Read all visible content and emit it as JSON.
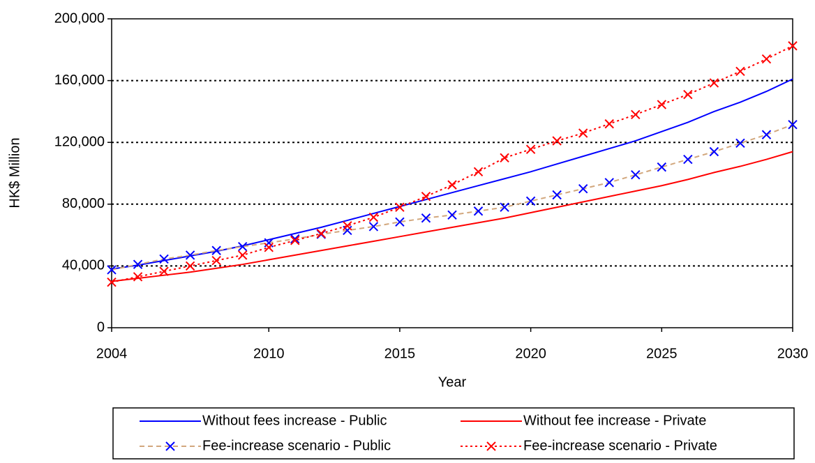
{
  "chart_data": {
    "type": "line",
    "xlabel": "Year",
    "ylabel": "HK$ Million",
    "x": [
      2004,
      2005,
      2006,
      2007,
      2008,
      2009,
      2010,
      2011,
      2012,
      2013,
      2014,
      2015,
      2016,
      2017,
      2018,
      2019,
      2020,
      2021,
      2022,
      2023,
      2024,
      2025,
      2026,
      2027,
      2028,
      2029,
      2030
    ],
    "xlim": [
      2004,
      2030
    ],
    "xticks": [
      2004,
      2010,
      2015,
      2020,
      2025,
      2030
    ],
    "ylim": [
      0,
      200000
    ],
    "yticks": [
      0,
      {
        "value": 40000,
        "label": "40,000"
      },
      {
        "value": 80000,
        "label": "80,000"
      },
      {
        "value": 120000,
        "label": "120,000"
      },
      {
        "value": 160000,
        "label": "160,000"
      },
      {
        "value": 200000,
        "label": "200,000"
      }
    ],
    "grid": true,
    "legend": "bottom",
    "series": [
      {
        "name": "Without fees increase - Public",
        "color": "#0000ff",
        "line_style": "solid",
        "values": [
          38000,
          40500,
          43500,
          46500,
          49500,
          53000,
          57000,
          61000,
          65000,
          69500,
          74000,
          78500,
          83000,
          87500,
          92000,
          96500,
          101000,
          106000,
          111000,
          116000,
          121000,
          127000,
          133000,
          140000,
          146000,
          153000,
          161000
        ]
      },
      {
        "name": "Without fee increase - Private",
        "color": "#ff0000",
        "line_style": "solid",
        "values": [
          30000,
          32000,
          34000,
          36000,
          38500,
          41000,
          44000,
          47000,
          50000,
          53000,
          56000,
          59000,
          62000,
          65000,
          68000,
          71000,
          74500,
          78000,
          81500,
          85000,
          88500,
          92000,
          96000,
          100500,
          104500,
          109000,
          114000
        ]
      },
      {
        "name": "Fee-increase scenario - Public",
        "color": "#d2a77d",
        "line_style": "dashed",
        "marker": "x",
        "marker_color": "#0000ff",
        "values": [
          37500,
          41000,
          44500,
          47000,
          50000,
          52500,
          55000,
          57500,
          60500,
          63000,
          65500,
          68500,
          71000,
          73000,
          75500,
          78000,
          82000,
          86000,
          90000,
          94000,
          99000,
          104000,
          109000,
          114000,
          119500,
          125000,
          131500
        ]
      },
      {
        "name": "Fee-increase scenario - Private",
        "color": "#ff0000",
        "line_style": "dotted",
        "marker": "x",
        "marker_color": "#ff0000",
        "values": [
          29500,
          33000,
          36500,
          40000,
          43500,
          47000,
          52000,
          56500,
          61000,
          66000,
          71500,
          78000,
          85000,
          92500,
          101000,
          110000,
          115500,
          121000,
          126000,
          132000,
          138000,
          144500,
          151000,
          158500,
          166000,
          174000,
          182500
        ]
      }
    ]
  }
}
